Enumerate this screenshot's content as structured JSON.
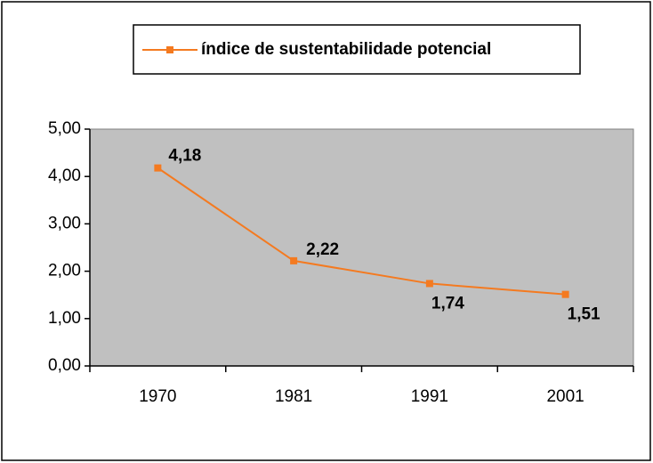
{
  "chart_data": {
    "type": "line",
    "categories": [
      "1970",
      "1981",
      "1991",
      "2001"
    ],
    "series": [
      {
        "name": "índice de sustentabilidade potencial",
        "color": "#f47a20",
        "values": [
          4.18,
          2.22,
          1.74,
          1.51
        ],
        "value_labels": [
          "4,18",
          "2,22",
          "1,74",
          "1,51"
        ]
      }
    ],
    "ylim": [
      0,
      5
    ],
    "yticks": [
      {
        "value": 0,
        "label": "0,00"
      },
      {
        "value": 1,
        "label": "1,00"
      },
      {
        "value": 2,
        "label": "2,00"
      },
      {
        "value": 3,
        "label": "3,00"
      },
      {
        "value": 4,
        "label": "4,00"
      },
      {
        "value": 5,
        "label": "5,00"
      }
    ],
    "plot_background": "#c0c0c0",
    "legend": "top"
  }
}
